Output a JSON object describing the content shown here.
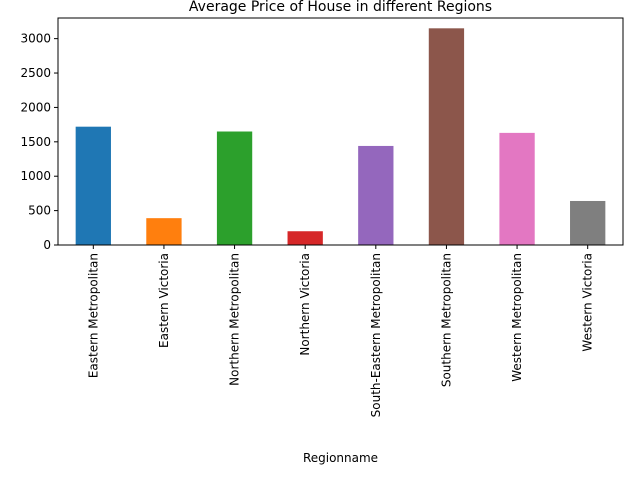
{
  "chart_data": {
    "type": "bar",
    "title": "Average Price of House in different Regions",
    "xlabel": "Regionname",
    "ylabel": "",
    "categories": [
      "Eastern Metropolitan",
      "Eastern Victoria",
      "Northern Metropolitan",
      "Northern Victoria",
      "South-Eastern Metropolitan",
      "Southern Metropolitan",
      "Western Metropolitan",
      "Western Victoria"
    ],
    "values": [
      1720,
      390,
      1650,
      200,
      1440,
      3150,
      1630,
      640
    ],
    "colors": [
      "#1f77b4",
      "#ff7f0e",
      "#2ca02c",
      "#d62728",
      "#9467bd",
      "#8c564b",
      "#e377c2",
      "#7f7f7f"
    ],
    "ylim": [
      0,
      3300
    ],
    "yticks": [
      "0",
      "500",
      "1000",
      "1500",
      "2000",
      "2500",
      "3000"
    ],
    "grid": false,
    "legend": "none"
  }
}
